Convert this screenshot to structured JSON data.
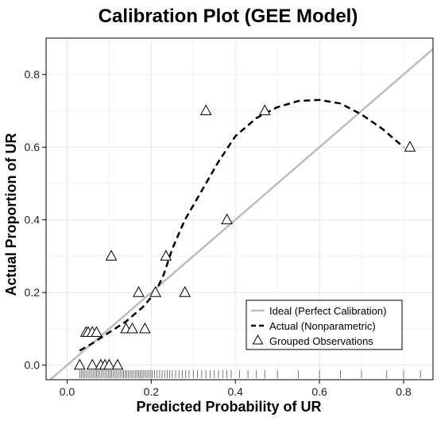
{
  "chart_data": {
    "type": "scatter",
    "title": "Calibration Plot (GEE Model)",
    "xlabel": "Predicted Probability of UR",
    "ylabel": "Actual Proportion of UR",
    "xlim": [
      -0.05,
      0.87
    ],
    "ylim": [
      -0.04,
      0.9
    ],
    "xticks": [
      0.0,
      0.2,
      0.4,
      0.6,
      0.8
    ],
    "xtick_labels": [
      "0.0",
      "0.2",
      "0.4",
      "0.6",
      "0.8"
    ],
    "yticks": [
      0.0,
      0.2,
      0.4,
      0.6,
      0.8
    ],
    "ytick_labels": [
      "0.0",
      "0.2",
      "0.4",
      "0.6",
      "0.8"
    ],
    "grid": true,
    "legend_position": "bottom-right",
    "series": [
      {
        "name": "Ideal (Perfect Calibration)",
        "kind": "line",
        "color": "#bdbdbd",
        "x": [
          -0.05,
          0.87
        ],
        "y": [
          -0.05,
          0.87
        ]
      },
      {
        "name": "Actual (Nonparametric)",
        "kind": "dashed-line",
        "color": "#000000",
        "x": [
          0.03,
          0.06,
          0.1,
          0.14,
          0.18,
          0.21,
          0.23,
          0.25,
          0.28,
          0.32,
          0.36,
          0.4,
          0.45,
          0.5,
          0.55,
          0.6,
          0.65,
          0.7,
          0.75,
          0.8
        ],
        "y": [
          0.04,
          0.06,
          0.09,
          0.12,
          0.16,
          0.2,
          0.25,
          0.32,
          0.4,
          0.48,
          0.56,
          0.63,
          0.68,
          0.71,
          0.727,
          0.73,
          0.72,
          0.69,
          0.65,
          0.6
        ]
      },
      {
        "name": "Grouped Observations",
        "kind": "markers",
        "marker": "triangle",
        "color": "#000000",
        "x": [
          0.03,
          0.045,
          0.05,
          0.06,
          0.06,
          0.07,
          0.08,
          0.09,
          0.1,
          0.105,
          0.12,
          0.14,
          0.155,
          0.17,
          0.185,
          0.21,
          0.235,
          0.28,
          0.33,
          0.38,
          0.47,
          0.815
        ],
        "y": [
          0.0,
          0.09,
          0.09,
          0.0,
          0.09,
          0.09,
          0.0,
          0.0,
          0.0,
          0.3,
          0.0,
          0.1,
          0.1,
          0.2,
          0.1,
          0.2,
          0.3,
          0.2,
          0.7,
          0.4,
          0.7,
          0.6
        ]
      }
    ],
    "rug": {
      "name": "rug",
      "x": [
        0.03,
        0.034,
        0.038,
        0.042,
        0.046,
        0.05,
        0.054,
        0.058,
        0.062,
        0.066,
        0.07,
        0.074,
        0.078,
        0.082,
        0.086,
        0.09,
        0.094,
        0.098,
        0.102,
        0.106,
        0.11,
        0.114,
        0.118,
        0.122,
        0.126,
        0.13,
        0.134,
        0.138,
        0.142,
        0.146,
        0.15,
        0.154,
        0.158,
        0.162,
        0.166,
        0.17,
        0.174,
        0.178,
        0.182,
        0.186,
        0.19,
        0.194,
        0.198,
        0.202,
        0.208,
        0.214,
        0.22,
        0.226,
        0.232,
        0.238,
        0.244,
        0.25,
        0.258,
        0.266,
        0.274,
        0.282,
        0.29,
        0.3,
        0.31,
        0.32,
        0.33,
        0.34,
        0.35,
        0.36,
        0.37,
        0.38,
        0.39,
        0.41,
        0.43,
        0.45,
        0.47,
        0.5,
        0.55,
        0.6,
        0.65,
        0.7,
        0.76,
        0.8,
        0.84
      ]
    }
  }
}
